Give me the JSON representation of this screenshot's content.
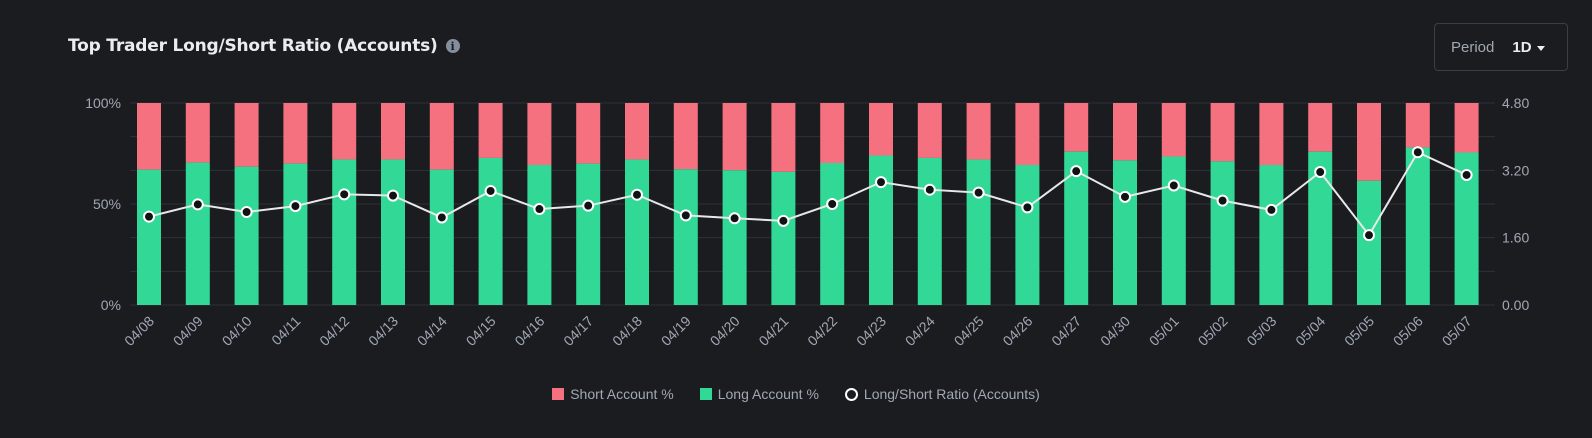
{
  "header": {
    "title": "Top Trader Long/Short Ratio (Accounts)",
    "info_icon": "info-icon"
  },
  "period": {
    "label": "Period",
    "value": "1D",
    "icon": "chevron-down-icon"
  },
  "colors": {
    "background": "#1b1c20",
    "short": "#f6717f",
    "long": "#32d996",
    "ratio_line": "#e8e8e8",
    "grid": "#2e3138",
    "tick_text": "#a0a8b4"
  },
  "legend": {
    "short": "Short Account %",
    "long": "Long Account %",
    "ratio": "Long/Short Ratio (Accounts)"
  },
  "chart_data": {
    "type": "bar",
    "stacked": true,
    "title": "Top Trader Long/Short Ratio (Accounts)",
    "categories": [
      "04/08",
      "04/09",
      "04/10",
      "04/11",
      "04/12",
      "04/13",
      "04/14",
      "04/15",
      "04/16",
      "04/17",
      "04/18",
      "04/19",
      "04/20",
      "04/21",
      "04/22",
      "04/23",
      "04/24",
      "04/25",
      "04/26",
      "04/27",
      "04/30",
      "05/01",
      "05/02",
      "05/03",
      "05/04",
      "05/05",
      "05/06",
      "05/07"
    ],
    "left_axis": {
      "ticks": [
        "0%",
        "50%",
        "100%"
      ],
      "ylim": [
        0,
        100
      ]
    },
    "right_axis": {
      "ticks": [
        "0.00",
        "1.60",
        "3.20",
        "4.80"
      ],
      "ylim": [
        0,
        4.8
      ]
    },
    "series": [
      {
        "name": "Long Account %",
        "axis": "left",
        "values": [
          67.0,
          70.5,
          68.5,
          70.0,
          72.0,
          72.0,
          67.0,
          72.8,
          69.3,
          70.0,
          72.0,
          67.2,
          66.7,
          65.9,
          70.3,
          74.0,
          72.8,
          72.0,
          69.3,
          75.9,
          71.6,
          73.5,
          71.1,
          69.3,
          75.9,
          61.5,
          78.0,
          75.5
        ]
      },
      {
        "name": "Short Account %",
        "axis": "left",
        "values": [
          33.0,
          29.5,
          31.5,
          30.0,
          28.0,
          28.0,
          33.0,
          27.2,
          30.7,
          30.0,
          28.0,
          32.8,
          33.3,
          34.1,
          29.7,
          26.0,
          27.2,
          28.0,
          30.7,
          24.1,
          28.4,
          26.5,
          28.9,
          30.7,
          24.1,
          38.5,
          22.0,
          24.5
        ]
      },
      {
        "name": "Long/Short Ratio (Accounts)",
        "axis": "right",
        "type": "line",
        "values": [
          2.1,
          2.39,
          2.21,
          2.35,
          2.63,
          2.6,
          2.08,
          2.71,
          2.28,
          2.36,
          2.62,
          2.13,
          2.06,
          2.0,
          2.4,
          2.92,
          2.74,
          2.67,
          2.32,
          3.18,
          2.57,
          2.84,
          2.48,
          2.26,
          3.16,
          1.66,
          3.63,
          3.09
        ]
      }
    ],
    "grid": true,
    "legend_position": "bottom"
  }
}
